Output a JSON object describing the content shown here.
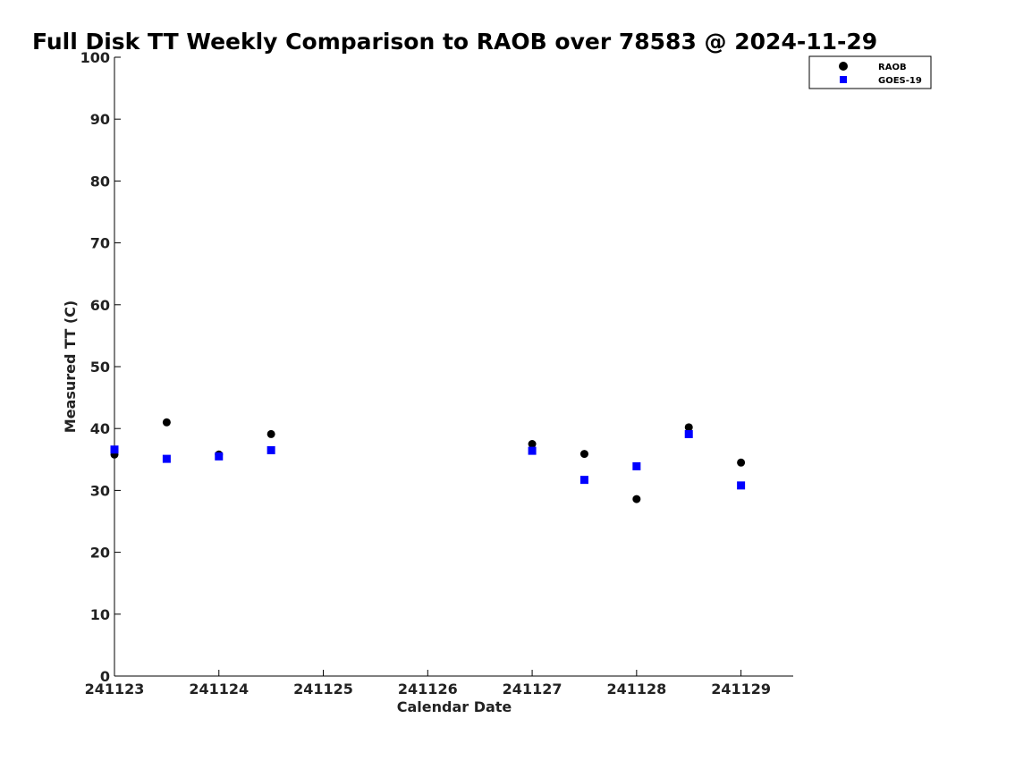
{
  "chart_data": {
    "type": "scatter",
    "title": "Full Disk TT Weekly Comparison to RAOB over 78583 @ 2024-11-29",
    "xlabel": "Calendar Date",
    "ylabel": "Measured TT (C)",
    "xlim": [
      "2024-11-23 00:00",
      "2024-11-29 12:00"
    ],
    "ylim": [
      0,
      100
    ],
    "x_ticks": [
      "241123",
      "241124",
      "241125",
      "241126",
      "241127",
      "241128",
      "241129"
    ],
    "y_ticks": [
      "0",
      "10",
      "20",
      "30",
      "40",
      "50",
      "60",
      "70",
      "80",
      "90",
      "100"
    ],
    "grid": false,
    "legend_position": "top-right",
    "series": [
      {
        "name": "RAOB",
        "marker": "circle",
        "color": "#000000",
        "points": [
          {
            "x": "2024-11-23 00:00",
            "y": 35.8
          },
          {
            "x": "2024-11-23 12:00",
            "y": 41.0
          },
          {
            "x": "2024-11-24 00:00",
            "y": 35.8
          },
          {
            "x": "2024-11-24 12:00",
            "y": 39.1
          },
          {
            "x": "2024-11-27 00:00",
            "y": 37.5
          },
          {
            "x": "2024-11-27 12:00",
            "y": 35.9
          },
          {
            "x": "2024-11-28 00:00",
            "y": 28.6
          },
          {
            "x": "2024-11-28 12:00",
            "y": 40.2
          },
          {
            "x": "2024-11-29 00:00",
            "y": 34.5
          }
        ]
      },
      {
        "name": "GOES-19",
        "marker": "square",
        "color": "#0000ff",
        "points": [
          {
            "x": "2024-11-23 00:00",
            "y": 36.6
          },
          {
            "x": "2024-11-23 12:00",
            "y": 35.1
          },
          {
            "x": "2024-11-24 00:00",
            "y": 35.5
          },
          {
            "x": "2024-11-24 12:00",
            "y": 36.5
          },
          {
            "x": "2024-11-27 00:00",
            "y": 36.4
          },
          {
            "x": "2024-11-27 12:00",
            "y": 31.7
          },
          {
            "x": "2024-11-28 00:00",
            "y": 33.9
          },
          {
            "x": "2024-11-28 12:00",
            "y": 39.1
          },
          {
            "x": "2024-11-29 00:00",
            "y": 30.8
          }
        ]
      }
    ]
  }
}
